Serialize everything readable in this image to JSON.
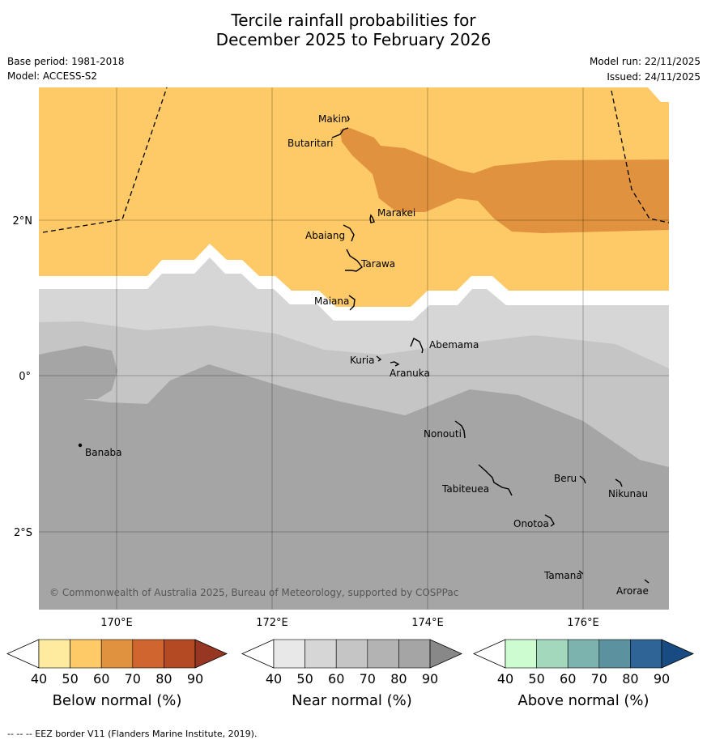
{
  "title": {
    "line1": "Tercile rainfall probabilities for",
    "line2": "December 2025 to February 2026"
  },
  "info": {
    "base_period": "Base period: 1981-2018",
    "model": "Model: ACCESS-S2",
    "model_run": "Model run: 22/11/2025",
    "issued": "Issued: 24/11/2025"
  },
  "map": {
    "lat_labels": [
      "2°N",
      "0°",
      "2°S"
    ],
    "lon_labels": [
      "170°E",
      "172°E",
      "174°E",
      "176°E"
    ],
    "copyright": "© Commonwealth of Australia 2025, Bureau of Meteorology, supported by COSPPac",
    "places": [
      "Makin",
      "Butaritari",
      "Marakei",
      "Abaiang",
      "Tarawa",
      "Maiana",
      "Abemama",
      "Kuria",
      "Aranuka",
      "Nonouti",
      "Banaba",
      "Beru",
      "Tabiteuea",
      "Nikunau",
      "Onotoa",
      "Tamana",
      "Arorae"
    ]
  },
  "legends": [
    {
      "label": "Below normal (%)",
      "ticks": [
        "40",
        "50",
        "60",
        "70",
        "80",
        "90"
      ],
      "colors": [
        "#ffffff",
        "#feeb9f",
        "#fec967",
        "#e0923f",
        "#d0652f",
        "#b34a24",
        "#973723"
      ]
    },
    {
      "label": "Near normal (%)",
      "ticks": [
        "40",
        "50",
        "60",
        "70",
        "80",
        "90"
      ],
      "colors": [
        "#ffffff",
        "#e8e8e8",
        "#d6d6d6",
        "#c5c5c5",
        "#b3b3b3",
        "#a5a5a5",
        "#888888"
      ]
    },
    {
      "label": "Above normal (%)",
      "ticks": [
        "40",
        "50",
        "60",
        "70",
        "80",
        "90"
      ],
      "colors": [
        "#ffffff",
        "#ccfcd0",
        "#a3d8bd",
        "#7db3ae",
        "#5c92a0",
        "#2f6497",
        "#174b82"
      ]
    }
  ],
  "footer": "--  --  -- EEZ border V11 (Flanders Marine Institute, 2019)."
}
